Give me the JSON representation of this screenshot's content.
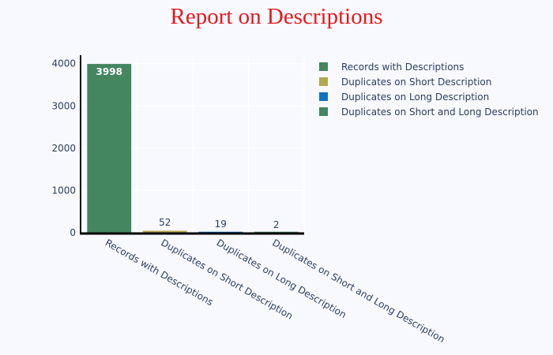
{
  "title": "Report on Descriptions",
  "colors": {
    "background": "#f8f8ff",
    "grid": "#ffffff",
    "axis": "#000000",
    "tick_text": "#2a3f5f",
    "title": "#e31a1c"
  },
  "chart_data": {
    "type": "bar",
    "title": "Report on Descriptions",
    "categories": [
      "Records with Descriptions",
      "Duplicates on Short Description",
      "Duplicates on Long Description",
      "Duplicates on Short and Long Description"
    ],
    "series": [
      {
        "name": "Records with Descriptions",
        "color": "#438660",
        "values": [
          3998,
          null,
          null,
          null
        ]
      },
      {
        "name": "Duplicates on Short Description",
        "color": "#b2a84f",
        "values": [
          null,
          52,
          null,
          null
        ]
      },
      {
        "name": "Duplicates on Long Description",
        "color": "#1172c4",
        "values": [
          null,
          null,
          19,
          null
        ]
      },
      {
        "name": "Duplicates on Short and Long Description",
        "color": "#438660",
        "values": [
          null,
          null,
          null,
          2
        ]
      }
    ],
    "data_labels": [
      "3998",
      "52",
      "19",
      "2"
    ],
    "ylim": [
      0,
      4200
    ],
    "yticks": [
      0,
      1000,
      2000,
      3000,
      4000
    ],
    "xlabel": "",
    "ylabel": "",
    "grid": true,
    "legend_position": "top-right"
  }
}
